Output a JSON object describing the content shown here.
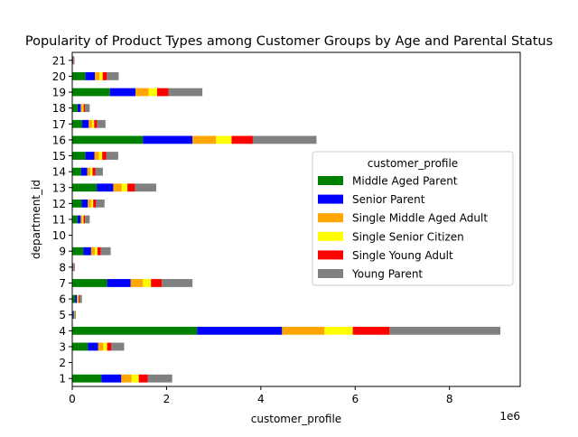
{
  "chart_data": {
    "type": "bar",
    "orientation": "horizontal",
    "stacked": true,
    "title": "Popularity of Product Types among Customer Groups by Age and Parental Status",
    "xlabel": "customer_profile",
    "ylabel": "department_id",
    "x_offset_label": "1e6",
    "xlim": [
      0,
      9500000
    ],
    "x_ticks": [
      0,
      2000000,
      4000000,
      6000000,
      8000000
    ],
    "x_tick_labels": [
      "0",
      "2",
      "4",
      "6",
      "8"
    ],
    "grid": false,
    "legend_title": "customer_profile",
    "legend_position": "center-right",
    "categories": [
      "1",
      "2",
      "3",
      "4",
      "5",
      "6",
      "7",
      "8",
      "9",
      "10",
      "11",
      "12",
      "13",
      "14",
      "15",
      "16",
      "17",
      "18",
      "19",
      "20",
      "21"
    ],
    "series": [
      {
        "name": "Middle Aged Parent",
        "color": "#008000",
        "values": [
          620000,
          1000,
          330000,
          2650000,
          20000,
          60000,
          740000,
          15000,
          240000,
          1000,
          110000,
          200000,
          520000,
          190000,
          280000,
          1500000,
          210000,
          110000,
          800000,
          280000,
          15000
        ]
      },
      {
        "name": "Senior Parent",
        "color": "#0000ff",
        "values": [
          420000,
          500,
          220000,
          1800000,
          15000,
          40000,
          500000,
          10000,
          160000,
          500,
          70000,
          130000,
          350000,
          130000,
          190000,
          1050000,
          140000,
          70000,
          540000,
          200000,
          10000
        ]
      },
      {
        "name": "Single Middle Aged Adult",
        "color": "#ffa500",
        "values": [
          220000,
          300,
          110000,
          900000,
          8000,
          20000,
          260000,
          5000,
          80000,
          300,
          35000,
          70000,
          180000,
          65000,
          100000,
          500000,
          70000,
          35000,
          280000,
          100000,
          5000
        ]
      },
      {
        "name": "Single Senior Citizen",
        "color": "#ffff00",
        "values": [
          150000,
          200,
          80000,
          600000,
          5000,
          15000,
          170000,
          4000,
          55000,
          200,
          25000,
          45000,
          120000,
          45000,
          65000,
          330000,
          45000,
          25000,
          180000,
          65000,
          3000
        ]
      },
      {
        "name": "Single Young Adult",
        "color": "#ff0000",
        "values": [
          190000,
          300,
          90000,
          780000,
          7000,
          20000,
          230000,
          8000,
          70000,
          300,
          30000,
          60000,
          160000,
          60000,
          90000,
          450000,
          60000,
          30000,
          240000,
          90000,
          4000
        ]
      },
      {
        "name": "Young Parent",
        "color": "#808080",
        "values": [
          520000,
          700,
          270000,
          2350000,
          20000,
          50000,
          650000,
          15000,
          210000,
          700,
          100000,
          180000,
          450000,
          160000,
          250000,
          1350000,
          180000,
          100000,
          720000,
          250000,
          10000
        ]
      }
    ]
  }
}
